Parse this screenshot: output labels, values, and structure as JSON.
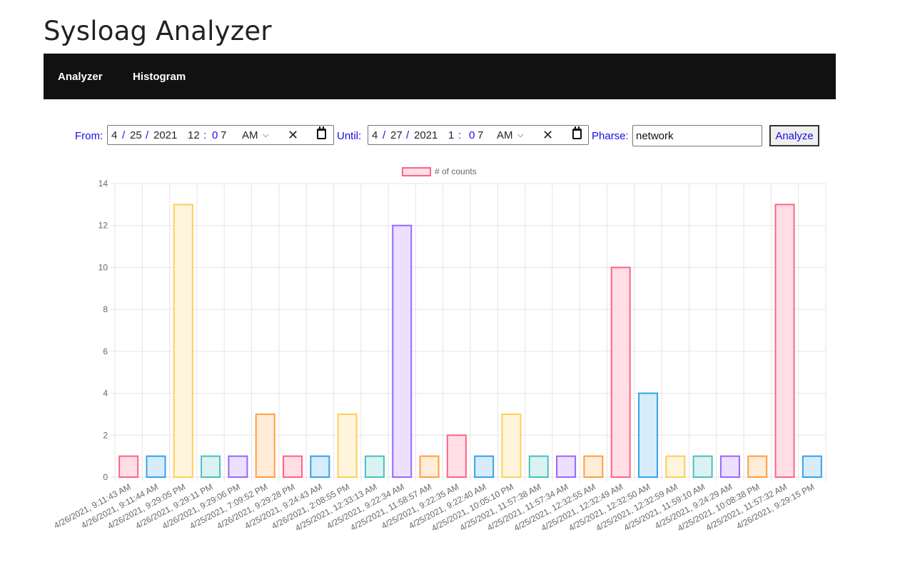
{
  "app": {
    "title": "Sysloag Analyzer"
  },
  "nav": {
    "items": [
      {
        "label": "Analyzer"
      },
      {
        "label": "Histogram"
      }
    ]
  },
  "filters": {
    "from": {
      "label": "From:",
      "month": "4",
      "day": "25",
      "year": "2021",
      "hour": "12",
      "minute_0": "0",
      "minute_1": "7",
      "ampm": "AM"
    },
    "until": {
      "label": "Until:",
      "month": "4",
      "day": "27",
      "year": "2021",
      "hour": "1",
      "minute_0": "0",
      "minute_1": "7",
      "ampm": "AM"
    },
    "phrase": {
      "label": "Pharse:",
      "value": "network"
    },
    "analyze_label": "Analyze"
  },
  "icons": {
    "clear": "close-icon",
    "calendar": "calendar-icon",
    "dropdown": "chevron-down-icon"
  },
  "chart_data": {
    "type": "bar",
    "legend": {
      "label": "# of counts",
      "position": "top"
    },
    "grid": true,
    "ylim": [
      0,
      14
    ],
    "yticks": [
      0,
      2,
      4,
      6,
      8,
      10,
      12,
      14
    ],
    "categories": [
      "4/26/2021, 9:11:43 AM",
      "4/26/2021, 9:11:44 AM",
      "4/26/2021, 9:29:05 PM",
      "4/26/2021, 9:29:11 PM",
      "4/26/2021, 9:29:06 PM",
      "4/25/2021, 7:09:52 PM",
      "4/26/2021, 9:29:28 PM",
      "4/25/2021, 9:24:43 AM",
      "4/26/2021, 2:08:55 PM",
      "4/25/2021, 12:33:13 AM",
      "4/25/2021, 9:22:34 AM",
      "4/25/2021, 11:58:57 AM",
      "4/25/2021, 9:22:35 AM",
      "4/25/2021, 9:22:40 AM",
      "4/25/2021, 10:05:10 PM",
      "4/25/2021, 11:57:38 AM",
      "4/25/2021, 11:57:34 AM",
      "4/25/2021, 12:32:55 AM",
      "4/25/2021, 12:32:49 AM",
      "4/25/2021, 12:32:50 AM",
      "4/25/2021, 12:32:59 AM",
      "4/25/2021, 11:59:10 AM",
      "4/25/2021, 9:24:29 AM",
      "4/25/2021, 10:08:38 PM",
      "4/25/2021, 11:57:32 AM",
      "4/26/2021, 9:29:15 PM"
    ],
    "values": [
      1,
      1,
      13,
      1,
      1,
      3,
      1,
      1,
      3,
      1,
      12,
      1,
      2,
      1,
      3,
      1,
      1,
      1,
      10,
      4,
      1,
      1,
      1,
      1,
      13,
      1
    ],
    "colors": {
      "border": [
        "#ff6384",
        "#36a2eb",
        "#ffce56",
        "#4bc0c0",
        "#9966ff",
        "#ff9f40"
      ],
      "fill": [
        "#ffdfe5",
        "#d7ecfb",
        "#fff5dd",
        "#dbf2f2",
        "#ebe0ff",
        "#ffecd9"
      ],
      "legend_border": "#ff6384",
      "legend_fill": "#ffdfe5",
      "grid": "#e5e5e5",
      "tick_text": "#666666",
      "label_blue": "#1a0dde",
      "navbar": "#111111"
    }
  }
}
